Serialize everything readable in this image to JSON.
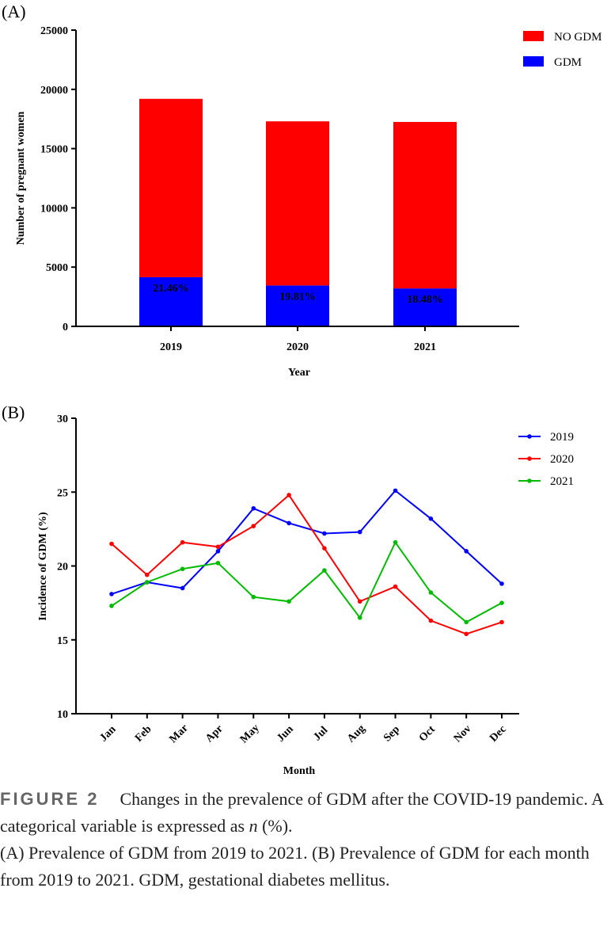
{
  "chart_data": [
    {
      "type": "bar",
      "stacked": true,
      "panel_label": "(A)",
      "title": "",
      "xlabel": "Year",
      "ylabel": "Number of pregnant women",
      "ylim": [
        0,
        25000
      ],
      "yticks": [
        0,
        5000,
        10000,
        15000,
        20000,
        25000
      ],
      "categories": [
        "2019",
        "2020",
        "2021"
      ],
      "series": [
        {
          "name": "GDM",
          "color": "#0000ff",
          "values": [
            4150,
            3450,
            3200
          ]
        },
        {
          "name": "NO GDM",
          "color": "#ff0000",
          "values": [
            15050,
            13850,
            14050
          ]
        }
      ],
      "legend_order": [
        "NO GDM",
        "GDM"
      ],
      "bar_labels": [
        "21.46%",
        "19.81%",
        "18.48%"
      ],
      "legend_position": "top-right"
    },
    {
      "type": "line",
      "panel_label": "(B)",
      "title": "",
      "xlabel": "Month",
      "ylabel": "Incidence of GDM (%)",
      "ylim": [
        10,
        30
      ],
      "yticks": [
        10,
        15,
        20,
        25,
        30
      ],
      "categories": [
        "Jan",
        "Feb",
        "Mar",
        "Apr",
        "May",
        "Jun",
        "Jul",
        "Aug",
        "Sep",
        "Oct",
        "Nov",
        "Dec"
      ],
      "series": [
        {
          "name": "2019",
          "color": "#0000ff",
          "values": [
            18.1,
            18.9,
            18.5,
            21.0,
            23.9,
            22.9,
            22.2,
            22.3,
            25.1,
            23.2,
            21.0,
            18.8
          ]
        },
        {
          "name": "2020",
          "color": "#ff0000",
          "values": [
            21.5,
            19.4,
            21.6,
            21.3,
            22.7,
            24.8,
            21.2,
            17.6,
            18.6,
            16.3,
            15.4,
            16.2
          ]
        },
        {
          "name": "2021",
          "color": "#00bb00",
          "values": [
            17.3,
            18.9,
            19.8,
            20.2,
            17.9,
            17.6,
            19.7,
            16.5,
            21.6,
            18.2,
            16.2,
            17.5
          ]
        }
      ],
      "legend_position": "top-right"
    }
  ],
  "caption": {
    "figure_label": "FIGURE 2",
    "line1": "Changes in the prevalence of GDM after the COVID-19 pandemic. A categorical variable is expressed as ",
    "n_symbol": "n",
    "line1_end": " (%).",
    "line2": "(A) Prevalence of GDM from 2019 to 2021. (B) Prevalence of GDM for each month from 2019 to 2021. GDM, gestational diabetes mellitus."
  }
}
